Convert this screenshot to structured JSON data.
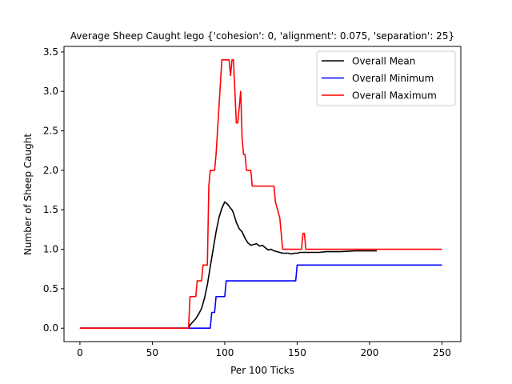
{
  "chart_data": {
    "type": "line",
    "title": "Average Sheep Caught lego {'cohesion': 0, 'alignment': 0.075, 'separation': 25}",
    "xlabel": "Per 100 Ticks",
    "ylabel": "Number of Sheep Caught",
    "xlim": [
      -11,
      263
    ],
    "ylim": [
      -0.17,
      3.57
    ],
    "x_ticks": [
      0,
      50,
      100,
      150,
      200,
      250
    ],
    "x_tick_labels": [
      "0",
      "50",
      "100",
      "150",
      "200",
      "250"
    ],
    "y_ticks": [
      0.0,
      0.5,
      1.0,
      1.5,
      2.0,
      2.5,
      3.0,
      3.5
    ],
    "y_tick_labels": [
      "0.0",
      "0.5",
      "1.0",
      "1.5",
      "2.0",
      "2.5",
      "3.0",
      "3.5"
    ],
    "grid": false,
    "legend_position": "top-right",
    "series": [
      {
        "name": "Overall Mean",
        "color": "#000000",
        "x": [
          0,
          75,
          76,
          78,
          80,
          82,
          84,
          86,
          88,
          90,
          92,
          94,
          96,
          98,
          100,
          102,
          104,
          105,
          106,
          108,
          110,
          112,
          114,
          116,
          118,
          120,
          122,
          124,
          126,
          128,
          130,
          132,
          134,
          136,
          138,
          140,
          142,
          144,
          146,
          148,
          150,
          152,
          155,
          160,
          165,
          170,
          180,
          190,
          205
        ],
        "y": [
          0,
          0,
          0.04,
          0.08,
          0.12,
          0.18,
          0.25,
          0.38,
          0.55,
          0.78,
          1.0,
          1.22,
          1.4,
          1.52,
          1.6,
          1.57,
          1.52,
          1.5,
          1.46,
          1.34,
          1.26,
          1.22,
          1.14,
          1.08,
          1.05,
          1.06,
          1.07,
          1.04,
          1.05,
          1.02,
          0.99,
          1.0,
          0.98,
          0.97,
          0.96,
          0.95,
          0.95,
          0.95,
          0.94,
          0.95,
          0.95,
          0.96,
          0.96,
          0.96,
          0.96,
          0.97,
          0.97,
          0.98,
          0.98
        ]
      },
      {
        "name": "Overall Minimum",
        "color": "#0000ff",
        "x": [
          0,
          75,
          76,
          90,
          91,
          92,
          93,
          94,
          95,
          96,
          100,
          101,
          149,
          150,
          151,
          250
        ],
        "y": [
          0,
          0,
          0,
          0,
          0.2,
          0.2,
          0.2,
          0.4,
          0.4,
          0.4,
          0.4,
          0.6,
          0.6,
          0.8,
          0.8,
          0.8
        ]
      },
      {
        "name": "Overall Maximum",
        "color": "#ff0000",
        "x": [
          0,
          75,
          76,
          80,
          81,
          84,
          85,
          88,
          89,
          90,
          91,
          93,
          94,
          96,
          98,
          99,
          100,
          103,
          104,
          105,
          106,
          107,
          108,
          109,
          110,
          111,
          112,
          113,
          114,
          115,
          116,
          118,
          119,
          120,
          121,
          122,
          123,
          134,
          135,
          138,
          139,
          140,
          148,
          149,
          150,
          153,
          154,
          155,
          156,
          157,
          250
        ],
        "y": [
          0,
          0,
          0.4,
          0.4,
          0.6,
          0.6,
          0.8,
          0.8,
          1.8,
          2.0,
          2.0,
          2.0,
          2.2,
          2.8,
          3.4,
          3.4,
          3.4,
          3.4,
          3.2,
          3.4,
          3.4,
          3.0,
          2.6,
          2.6,
          2.8,
          3.0,
          2.4,
          2.2,
          2.2,
          2.0,
          2.0,
          2.0,
          1.8,
          1.8,
          1.8,
          1.8,
          1.8,
          1.8,
          1.6,
          1.4,
          1.2,
          1.0,
          1.0,
          1.0,
          1.0,
          1.0,
          1.2,
          1.2,
          1.0,
          1.0,
          1.0
        ]
      }
    ]
  }
}
